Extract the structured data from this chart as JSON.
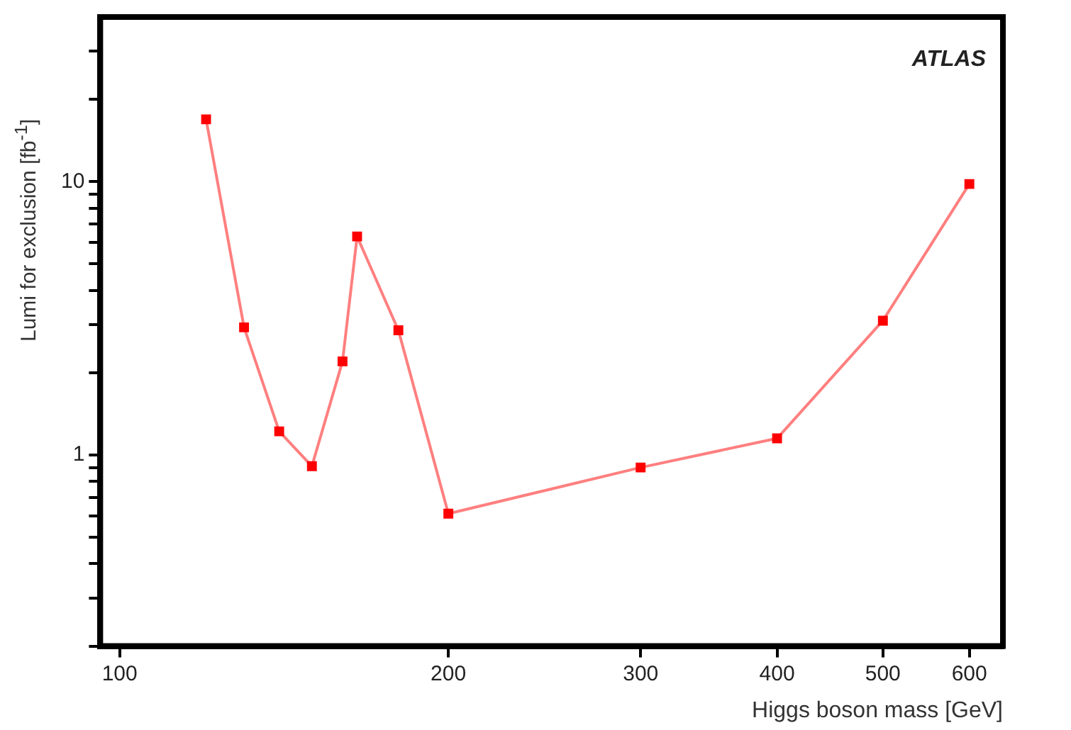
{
  "chart_data": {
    "type": "line",
    "xlabel": "Higgs boson mass [GeV]",
    "ylabel": "Lumi for exclusion [fb$^{-1}$]",
    "annotations": [
      "ATLAS"
    ],
    "log": "xy",
    "xlim": [
      96,
      644
    ],
    "ylim": [
      0.2,
      40
    ],
    "xticks": [
      100,
      200,
      300,
      400,
      500,
      600
    ],
    "yticks": [
      {
        "value": 0.2,
        "label": null
      },
      {
        "value": 0.3,
        "label": null
      },
      {
        "value": 0.4,
        "label": null
      },
      {
        "value": 0.5,
        "label": null
      },
      {
        "value": 0.6,
        "label": null
      },
      {
        "value": 0.7,
        "label": null
      },
      {
        "value": 0.8,
        "label": null
      },
      {
        "value": 0.9,
        "label": null
      },
      1,
      {
        "value": 2,
        "label": null
      },
      {
        "value": 3,
        "label": null
      },
      {
        "value": 4,
        "label": null
      },
      {
        "value": 5,
        "label": null
      },
      {
        "value": 6,
        "label": null
      },
      {
        "value": 7,
        "label": null
      },
      {
        "value": 8,
        "label": null
      },
      {
        "value": 9,
        "label": null
      },
      10,
      {
        "value": 20,
        "label": null
      },
      {
        "value": 30,
        "label": null
      }
    ],
    "x": [
      120,
      130,
      140,
      150,
      160,
      165,
      180,
      200,
      300,
      400,
      500,
      600
    ],
    "series": [
      {
        "color": "#ff0000",
        "values": [
          16.9,
          2.93,
          1.22,
          0.91,
          2.2,
          6.3,
          2.86,
          0.61,
          0.9,
          1.15,
          3.1,
          9.8
        ]
      }
    ],
    "grid": false,
    "legend": false,
    "marker": "square",
    "line_style": "solid"
  }
}
